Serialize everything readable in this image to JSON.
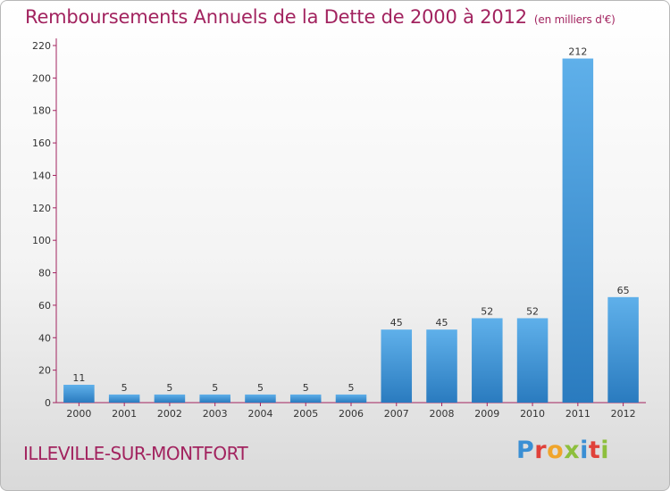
{
  "chart_data": {
    "type": "bar",
    "title": "Remboursements Annuels de la Dette de 2000 à 2012",
    "subtitle": "(en milliers d'€)",
    "categories": [
      "2000",
      "2001",
      "2002",
      "2003",
      "2004",
      "2005",
      "2006",
      "2007",
      "2008",
      "2009",
      "2010",
      "2011",
      "2012"
    ],
    "values": [
      11,
      5,
      5,
      5,
      5,
      5,
      5,
      45,
      45,
      52,
      52,
      212,
      65
    ],
    "ylim": [
      0,
      220
    ],
    "yticks": [
      0,
      20,
      40,
      60,
      80,
      100,
      120,
      140,
      160,
      180,
      200,
      220
    ],
    "xlabel": "",
    "ylabel": "",
    "grid": false,
    "bar_color": "#3a8fd4",
    "axis_color": "#a2235f"
  },
  "commune": "ILLEVILLE-SUR-MONTFORT",
  "logo": {
    "letters": [
      {
        "ch": "P",
        "color": "#3a8fd4"
      },
      {
        "ch": "r",
        "color": "#e0413a"
      },
      {
        "ch": "o",
        "color": "#f0a52b"
      },
      {
        "ch": "x",
        "color": "#8dbf3c"
      },
      {
        "ch": "i",
        "color": "#3a8fd4"
      },
      {
        "ch": "t",
        "color": "#e0413a"
      },
      {
        "ch": "i",
        "color": "#8dbf3c"
      }
    ]
  }
}
